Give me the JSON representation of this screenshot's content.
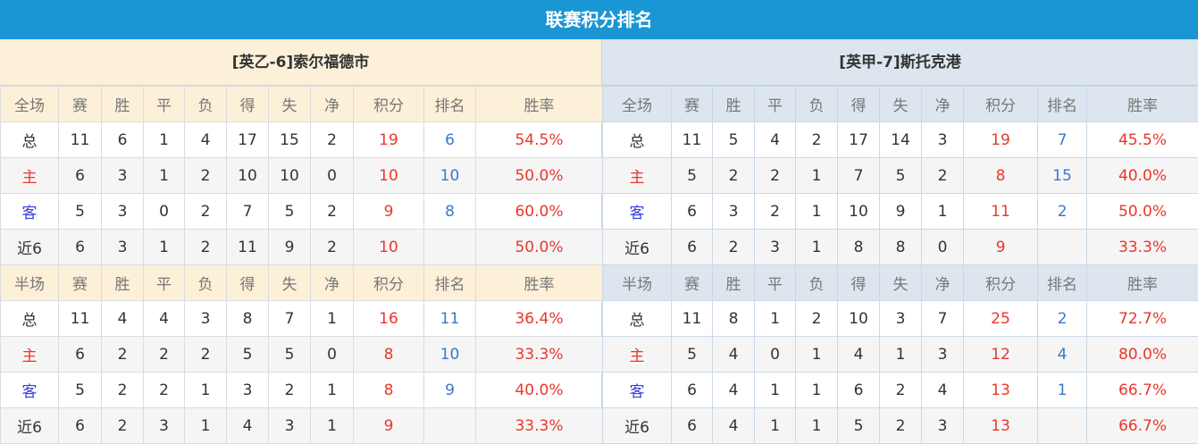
{
  "title": "联赛积分排名",
  "colors": {
    "header": "#1a96d4",
    "points": "#e8382b",
    "rank": "#3a78c8"
  },
  "teams": [
    {
      "name": "[英乙-6]索尔福德市",
      "sections": [
        {
          "header": [
            "全场",
            "赛",
            "胜",
            "平",
            "负",
            "得",
            "失",
            "净",
            "积分",
            "排名",
            "胜率"
          ],
          "rows": [
            [
              "总",
              "11",
              "6",
              "1",
              "4",
              "17",
              "15",
              "2",
              "19",
              "6",
              "54.5%"
            ],
            [
              "主",
              "6",
              "3",
              "1",
              "2",
              "10",
              "10",
              "0",
              "10",
              "10",
              "50.0%"
            ],
            [
              "客",
              "5",
              "3",
              "0",
              "2",
              "7",
              "5",
              "2",
              "9",
              "8",
              "60.0%"
            ],
            [
              "近6",
              "6",
              "3",
              "1",
              "2",
              "11",
              "9",
              "2",
              "10",
              "",
              "50.0%"
            ]
          ]
        },
        {
          "header": [
            "半场",
            "赛",
            "胜",
            "平",
            "负",
            "得",
            "失",
            "净",
            "积分",
            "排名",
            "胜率"
          ],
          "rows": [
            [
              "总",
              "11",
              "4",
              "4",
              "3",
              "8",
              "7",
              "1",
              "16",
              "11",
              "36.4%"
            ],
            [
              "主",
              "6",
              "2",
              "2",
              "2",
              "5",
              "5",
              "0",
              "8",
              "10",
              "33.3%"
            ],
            [
              "客",
              "5",
              "2",
              "2",
              "1",
              "3",
              "2",
              "1",
              "8",
              "9",
              "40.0%"
            ],
            [
              "近6",
              "6",
              "2",
              "3",
              "1",
              "4",
              "3",
              "1",
              "9",
              "",
              "33.3%"
            ]
          ]
        }
      ]
    },
    {
      "name": "[英甲-7]斯托克港",
      "sections": [
        {
          "header": [
            "全场",
            "赛",
            "胜",
            "平",
            "负",
            "得",
            "失",
            "净",
            "积分",
            "排名",
            "胜率"
          ],
          "rows": [
            [
              "总",
              "11",
              "5",
              "4",
              "2",
              "17",
              "14",
              "3",
              "19",
              "7",
              "45.5%"
            ],
            [
              "主",
              "5",
              "2",
              "2",
              "1",
              "7",
              "5",
              "2",
              "8",
              "15",
              "40.0%"
            ],
            [
              "客",
              "6",
              "3",
              "2",
              "1",
              "10",
              "9",
              "1",
              "11",
              "2",
              "50.0%"
            ],
            [
              "近6",
              "6",
              "2",
              "3",
              "1",
              "8",
              "8",
              "0",
              "9",
              "",
              "33.3%"
            ]
          ]
        },
        {
          "header": [
            "半场",
            "赛",
            "胜",
            "平",
            "负",
            "得",
            "失",
            "净",
            "积分",
            "排名",
            "胜率"
          ],
          "rows": [
            [
              "总",
              "11",
              "8",
              "1",
              "2",
              "10",
              "3",
              "7",
              "25",
              "2",
              "72.7%"
            ],
            [
              "主",
              "5",
              "4",
              "0",
              "1",
              "4",
              "1",
              "3",
              "12",
              "4",
              "80.0%"
            ],
            [
              "客",
              "6",
              "4",
              "1",
              "1",
              "6",
              "2",
              "4",
              "13",
              "1",
              "66.7%"
            ],
            [
              "近6",
              "6",
              "4",
              "1",
              "1",
              "5",
              "2",
              "3",
              "13",
              "",
              "66.7%"
            ]
          ]
        }
      ]
    }
  ]
}
